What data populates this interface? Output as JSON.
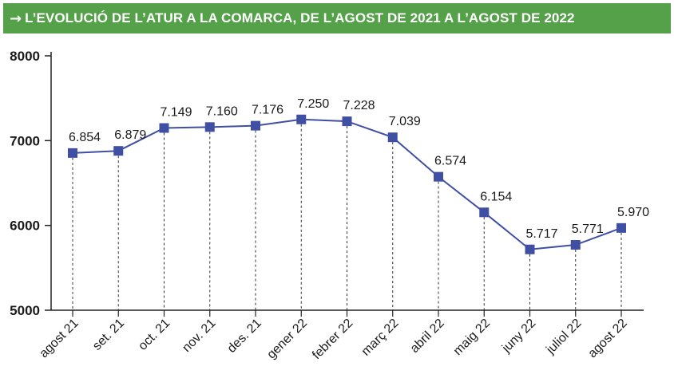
{
  "header": {
    "arrow": "→",
    "title": "L’EVOLUCIÓ DE L’ATUR A LA COMARCA, DE L’AGOST DE 2021 A L’AGOST DE 2022"
  },
  "colors": {
    "header_bg": "#55a14a",
    "line": "#3f4fa3",
    "marker": "#3f4fa3"
  },
  "chart_data": {
    "type": "line",
    "title": "L’EVOLUCIÓ DE L’ATUR A LA COMARCA, DE L’AGOST DE 2021 A L’AGOST DE 2022",
    "xlabel": "",
    "ylabel": "",
    "ylim": [
      5000,
      8000
    ],
    "yticks": [
      5000,
      6000,
      7000,
      8000
    ],
    "grid": "vertical dashed drop lines",
    "categories": [
      "agost 21",
      "set. 21",
      "oct. 21",
      "nov. 21",
      "des. 21",
      "gener 22",
      "febrer 22",
      "març 22",
      "abril 22",
      "maig 22",
      "juny 22",
      "juliol 22",
      "agost 22"
    ],
    "values": [
      6854,
      6879,
      7149,
      7160,
      7176,
      7250,
      7228,
      7039,
      6574,
      6154,
      5717,
      5771,
      5970
    ],
    "data_labels": [
      "6.854",
      "6.879",
      "7.149",
      "7.160",
      "7.176",
      "7.250",
      "7.228",
      "7.039",
      "6.574",
      "6.154",
      "5.717",
      "5.771",
      "5.970"
    ]
  }
}
